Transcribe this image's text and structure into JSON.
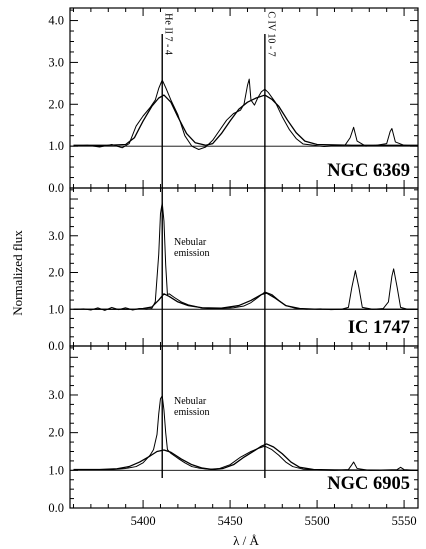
{
  "chart_data": {
    "type": "line",
    "xlabel": "λ / Å",
    "ylabel": "Normalized flux",
    "xlim": [
      5358,
      5558
    ],
    "x_ticks": [
      5400,
      5450,
      5500,
      5550
    ],
    "x_tick_labels": [
      "5400",
      "5450",
      "5500",
      "5550"
    ],
    "line_markers": [
      {
        "label": "He II 7 - 4",
        "x": 5411
      },
      {
        "label": "C IV 10 - 7",
        "x": 5470
      }
    ],
    "reference_level": 1.0,
    "panels": [
      {
        "name": "NGC 6369",
        "ylim": [
          0,
          4.3
        ],
        "y_ticks": [
          0,
          1,
          2,
          3,
          4
        ],
        "y_tick_labels": [
          "0.0",
          "1.0",
          "2.0",
          "3.0",
          "4.0"
        ],
        "annotations": [],
        "series": [
          {
            "values": [
              [
                5360,
                1.0
              ],
              [
                5368,
                1.02
              ],
              [
                5375,
                0.98
              ],
              [
                5382,
                1.04
              ],
              [
                5388,
                0.96
              ],
              [
                5392,
                1.06
              ],
              [
                5396,
                1.48
              ],
              [
                5400,
                1.72
              ],
              [
                5404,
                1.92
              ],
              [
                5407,
                2.1
              ],
              [
                5409,
                2.38
              ],
              [
                5411,
                2.58
              ],
              [
                5413,
                2.4
              ],
              [
                5416,
                2.1
              ],
              [
                5420,
                1.75
              ],
              [
                5424,
                1.25
              ],
              [
                5428,
                1.0
              ],
              [
                5432,
                0.92
              ],
              [
                5436,
                0.98
              ],
              [
                5440,
                1.14
              ],
              [
                5444,
                1.38
              ],
              [
                5448,
                1.62
              ],
              [
                5452,
                1.78
              ],
              [
                5456,
                1.86
              ],
              [
                5458,
                2.0
              ],
              [
                5460,
                2.45
              ],
              [
                5461,
                2.6
              ],
              [
                5462,
                2.1
              ],
              [
                5464,
                1.98
              ],
              [
                5466,
                2.16
              ],
              [
                5468,
                2.3
              ],
              [
                5470,
                2.36
              ],
              [
                5472,
                2.28
              ],
              [
                5476,
                2.05
              ],
              [
                5480,
                1.7
              ],
              [
                5484,
                1.4
              ],
              [
                5488,
                1.18
              ],
              [
                5492,
                1.05
              ],
              [
                5498,
                1.02
              ],
              [
                5504,
                0.99
              ],
              [
                5510,
                1.01
              ],
              [
                5516,
                1.02
              ],
              [
                5519,
                1.2
              ],
              [
                5521,
                1.45
              ],
              [
                5523,
                1.12
              ],
              [
                5528,
                1.0
              ],
              [
                5534,
                1.02
              ],
              [
                5540,
                1.06
              ],
              [
                5542,
                1.35
              ],
              [
                5543,
                1.42
              ],
              [
                5545,
                1.1
              ],
              [
                5550,
                1.02
              ],
              [
                5558,
                1.0
              ]
            ]
          },
          {
            "values": [
              [
                5360,
                1.02
              ],
              [
                5380,
                1.02
              ],
              [
                5390,
                1.04
              ],
              [
                5395,
                1.2
              ],
              [
                5400,
                1.6
              ],
              [
                5405,
                1.95
              ],
              [
                5409,
                2.15
              ],
              [
                5412,
                2.22
              ],
              [
                5416,
                2.05
              ],
              [
                5420,
                1.7
              ],
              [
                5425,
                1.3
              ],
              [
                5430,
                1.08
              ],
              [
                5436,
                1.02
              ],
              [
                5440,
                1.06
              ],
              [
                5445,
                1.3
              ],
              [
                5450,
                1.6
              ],
              [
                5455,
                1.88
              ],
              [
                5460,
                2.05
              ],
              [
                5465,
                2.15
              ],
              [
                5470,
                2.22
              ],
              [
                5474,
                2.12
              ],
              [
                5478,
                1.95
              ],
              [
                5483,
                1.62
              ],
              [
                5488,
                1.32
              ],
              [
                5493,
                1.12
              ],
              [
                5500,
                1.04
              ],
              [
                5520,
                1.02
              ],
              [
                5558,
                1.02
              ]
            ]
          }
        ]
      },
      {
        "name": "IC 1747",
        "ylim": [
          0,
          4.3
        ],
        "y_ticks": [
          0,
          1,
          2,
          3,
          4
        ],
        "y_tick_labels": [
          "0.0",
          "1.0",
          "2.0",
          "3.0",
          ""
        ],
        "annotations": [
          "Nebular",
          "emission"
        ],
        "series": [
          {
            "values": [
              [
                5360,
                1.0
              ],
              [
                5366,
                1.01
              ],
              [
                5370,
                0.98
              ],
              [
                5374,
                1.04
              ],
              [
                5378,
                0.97
              ],
              [
                5382,
                1.05
              ],
              [
                5386,
                0.99
              ],
              [
                5390,
                1.04
              ],
              [
                5394,
                0.98
              ],
              [
                5398,
                1.02
              ],
              [
                5402,
                1.0
              ],
              [
                5405,
                1.02
              ],
              [
                5407,
                1.2
              ],
              [
                5409,
                2.5
              ],
              [
                5410,
                3.6
              ],
              [
                5411,
                3.9
              ],
              [
                5412,
                3.4
              ],
              [
                5413,
                2.2
              ],
              [
                5414,
                1.4
              ],
              [
                5415,
                1.42
              ],
              [
                5418,
                1.32
              ],
              [
                5422,
                1.2
              ],
              [
                5426,
                1.12
              ],
              [
                5430,
                1.08
              ],
              [
                5434,
                1.03
              ],
              [
                5440,
                1.01
              ],
              [
                5446,
                1.02
              ],
              [
                5452,
                1.04
              ],
              [
                5458,
                1.09
              ],
              [
                5462,
                1.18
              ],
              [
                5466,
                1.32
              ],
              [
                5470,
                1.47
              ],
              [
                5474,
                1.4
              ],
              [
                5478,
                1.24
              ],
              [
                5482,
                1.1
              ],
              [
                5488,
                1.02
              ],
              [
                5494,
                1.0
              ],
              [
                5502,
                1.01
              ],
              [
                5508,
                0.99
              ],
              [
                5514,
                1.0
              ],
              [
                5518,
                1.05
              ],
              [
                5520,
                1.6
              ],
              [
                5522,
                2.05
              ],
              [
                5524,
                1.6
              ],
              [
                5526,
                1.05
              ],
              [
                5532,
                1.0
              ],
              [
                5538,
                1.02
              ],
              [
                5541,
                1.2
              ],
              [
                5543,
                1.9
              ],
              [
                5544,
                2.1
              ],
              [
                5546,
                1.6
              ],
              [
                5548,
                1.05
              ],
              [
                5552,
                1.0
              ],
              [
                5558,
                1.0
              ]
            ]
          },
          {
            "values": [
              [
                5360,
                1.0
              ],
              [
                5395,
                1.0
              ],
              [
                5400,
                1.02
              ],
              [
                5405,
                1.06
              ],
              [
                5409,
                1.25
              ],
              [
                5412,
                1.42
              ],
              [
                5415,
                1.35
              ],
              [
                5420,
                1.2
              ],
              [
                5426,
                1.1
              ],
              [
                5434,
                1.04
              ],
              [
                5445,
                1.03
              ],
              [
                5455,
                1.1
              ],
              [
                5462,
                1.24
              ],
              [
                5468,
                1.4
              ],
              [
                5471,
                1.44
              ],
              [
                5476,
                1.3
              ],
              [
                5482,
                1.1
              ],
              [
                5490,
                1.02
              ],
              [
                5500,
                1.0
              ],
              [
                5558,
                1.0
              ]
            ]
          }
        ]
      },
      {
        "name": "NGC 6905",
        "ylim": [
          0,
          4.3
        ],
        "y_ticks": [
          0,
          1,
          2,
          3,
          4
        ],
        "y_tick_labels": [
          "0.0",
          "1.0",
          "2.0",
          "3.0",
          ""
        ],
        "annotations": [
          "Nebular",
          "emission"
        ],
        "series": [
          {
            "values": [
              [
                5360,
                1.02
              ],
              [
                5372,
                1.01
              ],
              [
                5382,
                1.02
              ],
              [
                5390,
                1.05
              ],
              [
                5396,
                1.1
              ],
              [
                5400,
                1.2
              ],
              [
                5404,
                1.4
              ],
              [
                5406,
                1.55
              ],
              [
                5408,
                1.95
              ],
              [
                5409,
                2.5
              ],
              [
                5410,
                2.9
              ],
              [
                5411,
                2.98
              ],
              [
                5412,
                2.6
              ],
              [
                5413,
                2.0
              ],
              [
                5414,
                1.55
              ],
              [
                5416,
                1.45
              ],
              [
                5420,
                1.32
              ],
              [
                5424,
                1.2
              ],
              [
                5428,
                1.1
              ],
              [
                5432,
                1.06
              ],
              [
                5438,
                1.03
              ],
              [
                5444,
                1.05
              ],
              [
                5450,
                1.15
              ],
              [
                5456,
                1.35
              ],
              [
                5462,
                1.5
              ],
              [
                5466,
                1.58
              ],
              [
                5470,
                1.64
              ],
              [
                5474,
                1.55
              ],
              [
                5478,
                1.4
              ],
              [
                5482,
                1.22
              ],
              [
                5486,
                1.1
              ],
              [
                5492,
                1.03
              ],
              [
                5500,
                1.01
              ],
              [
                5510,
                1.0
              ],
              [
                5518,
                1.02
              ],
              [
                5520,
                1.15
              ],
              [
                5521,
                1.22
              ],
              [
                5523,
                1.05
              ],
              [
                5530,
                1.0
              ],
              [
                5546,
                1.02
              ],
              [
                5548,
                1.08
              ],
              [
                5550,
                1.02
              ],
              [
                5558,
                1.0
              ]
            ]
          },
          {
            "values": [
              [
                5360,
                1.02
              ],
              [
                5375,
                1.02
              ],
              [
                5385,
                1.04
              ],
              [
                5392,
                1.1
              ],
              [
                5398,
                1.22
              ],
              [
                5404,
                1.38
              ],
              [
                5408,
                1.5
              ],
              [
                5412,
                1.54
              ],
              [
                5416,
                1.48
              ],
              [
                5422,
                1.3
              ],
              [
                5428,
                1.15
              ],
              [
                5434,
                1.06
              ],
              [
                5440,
                1.02
              ],
              [
                5446,
                1.05
              ],
              [
                5452,
                1.15
              ],
              [
                5458,
                1.35
              ],
              [
                5464,
                1.52
              ],
              [
                5468,
                1.64
              ],
              [
                5471,
                1.7
              ],
              [
                5475,
                1.62
              ],
              [
                5480,
                1.44
              ],
              [
                5485,
                1.22
              ],
              [
                5490,
                1.08
              ],
              [
                5498,
                1.02
              ],
              [
                5510,
                1.01
              ],
              [
                5558,
                1.0
              ]
            ]
          }
        ]
      }
    ]
  }
}
